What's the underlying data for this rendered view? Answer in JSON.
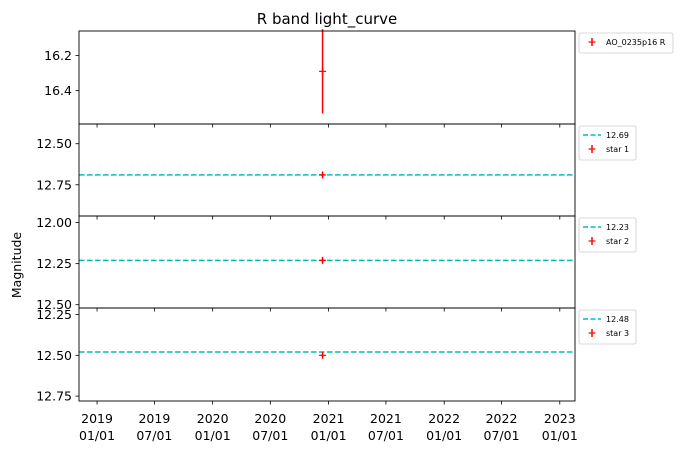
{
  "title": "R band light_curve",
  "ylabel": "Magnitude",
  "colors": {
    "points": "#ff0000",
    "reference": "#00bfbf",
    "axis": "#000000"
  },
  "x_ticks": [
    {
      "date": "2019-01-01",
      "line1": "2019",
      "line2": "01/01"
    },
    {
      "date": "2019-07-01",
      "line1": "2019",
      "line2": "07/01"
    },
    {
      "date": "2020-01-01",
      "line1": "2020",
      "line2": "01/01"
    },
    {
      "date": "2020-07-01",
      "line1": "2020",
      "line2": "07/01"
    },
    {
      "date": "2021-01-01",
      "line1": "2021",
      "line2": "01/01"
    },
    {
      "date": "2021-07-01",
      "line1": "2021",
      "line2": "07/01"
    },
    {
      "date": "2022-01-01",
      "line1": "2022",
      "line2": "01/01"
    },
    {
      "date": "2022-07-01",
      "line1": "2022",
      "line2": "07/01"
    },
    {
      "date": "2023-01-01",
      "line1": "2023",
      "line2": "01/01"
    }
  ],
  "chart_data": [
    {
      "type": "scatter",
      "name": "target",
      "xlim": [
        "2018-11-05",
        "2023-02-18"
      ],
      "ylim": [
        16.06,
        16.59
      ],
      "inverted_y": true,
      "yticks": [
        16.2,
        16.4
      ],
      "ytick_labels": [
        "16.2",
        "16.4"
      ],
      "series": [
        {
          "name": "AO_0235p16 R",
          "kind": "errorbar",
          "color": "#ff0000",
          "points": [
            {
              "x": "2020-12-13",
              "y": 16.29,
              "yerr": 0.24
            }
          ]
        }
      ],
      "legend": "outside-right-top"
    },
    {
      "type": "scatter",
      "name": "star 1",
      "xlim": [
        "2018-11-05",
        "2023-02-18"
      ],
      "ylim": [
        12.38,
        12.94
      ],
      "inverted_y": true,
      "yticks": [
        12.5,
        12.75
      ],
      "ytick_labels": [
        "12.50",
        "12.75"
      ],
      "reference_line": {
        "name": "12.69",
        "y": 12.69,
        "color": "#00bfbf",
        "style": "dashed"
      },
      "series": [
        {
          "name": "star 1",
          "kind": "errorbar",
          "color": "#ff0000",
          "points": [
            {
              "x": "2020-12-13",
              "y": 12.69,
              "yerr": 0.01
            }
          ]
        }
      ],
      "legend": "outside-right-top"
    },
    {
      "type": "scatter",
      "name": "star 2",
      "xlim": [
        "2018-11-05",
        "2023-02-18"
      ],
      "ylim": [
        11.96,
        12.52
      ],
      "inverted_y": true,
      "yticks": [
        12.0,
        12.25,
        12.5
      ],
      "ytick_labels": [
        "12.00",
        "12.25",
        "12.50"
      ],
      "reference_line": {
        "name": "12.23",
        "y": 12.23,
        "color": "#00bfbf",
        "style": "dashed"
      },
      "series": [
        {
          "name": "star 2",
          "kind": "errorbar",
          "color": "#ff0000",
          "points": [
            {
              "x": "2020-12-13",
              "y": 12.23,
              "yerr": 0.01
            }
          ]
        }
      ],
      "legend": "outside-right-top"
    },
    {
      "type": "scatter",
      "name": "star 3",
      "xlim": [
        "2018-11-05",
        "2023-02-18"
      ],
      "ylim": [
        12.21,
        12.78
      ],
      "inverted_y": true,
      "yticks": [
        12.25,
        12.5,
        12.75
      ],
      "ytick_labels": [
        "12.25",
        "12.50",
        "12.75"
      ],
      "reference_line": {
        "name": "12.48",
        "y": 12.48,
        "color": "#00bfbf",
        "style": "dashed"
      },
      "series": [
        {
          "name": "star 3",
          "kind": "errorbar",
          "color": "#ff0000",
          "points": [
            {
              "x": "2020-12-13",
              "y": 12.5,
              "yerr": 0.01
            }
          ]
        }
      ],
      "legend": "outside-right-top"
    }
  ]
}
